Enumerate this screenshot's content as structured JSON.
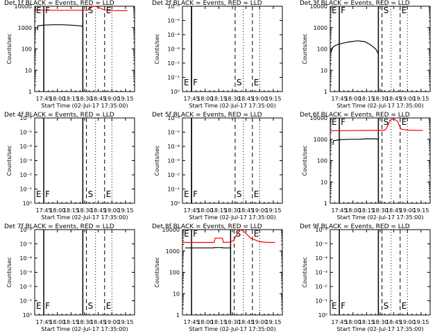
{
  "page": {
    "xlabel": "Start Time (02-Jul-17 17:35:00)",
    "ylabel": "Counts/sec",
    "x_ticks": [
      "17:45",
      "18:00",
      "18:15",
      "18:30",
      "18:45",
      "19:00",
      "19:15"
    ],
    "x_tick_minutes": [
      10,
      25,
      40,
      55,
      70,
      85,
      100
    ],
    "x_range_minutes": [
      0,
      110
    ],
    "marker_labels": [
      "E",
      "F",
      "S",
      "E"
    ],
    "colors": {
      "events": "#000000",
      "lld": "#ff0000",
      "axis": "#000000"
    }
  },
  "chart_data": [
    {
      "type": "line",
      "title": "Det 1f BLACK = Events, RED = LLD",
      "scale": "log",
      "ylim": [
        1,
        10000
      ],
      "y_ticks": [
        "1",
        "10",
        "100",
        "1000",
        "10000"
      ],
      "markers": {
        "E": 0,
        "F": 10,
        "solid": 53,
        "S": 57,
        "dotted1": 67,
        "E2": 77,
        "dotted2": 85
      },
      "series": [
        {
          "name": "LLD",
          "color": "#ff0000",
          "x": [
            0,
            58,
            60,
            63,
            66,
            70,
            74,
            78,
            85,
            95,
            102
          ],
          "y": [
            6500,
            6500,
            7000,
            9500,
            10000,
            9000,
            7500,
            6500,
            6300,
            6200,
            6200
          ]
        },
        {
          "name": "Events",
          "color": "#000000",
          "x": [
            3,
            3.5,
            10,
            20,
            30,
            40,
            50,
            53
          ],
          "y": [
            750,
            1200,
            1300,
            1350,
            1350,
            1300,
            1200,
            1150
          ]
        }
      ]
    },
    {
      "type": "line",
      "title": "Det 2f BLACK = Events, RED = LLD",
      "scale": "tiny",
      "ylim": [
        0.95,
        1.05
      ],
      "y_ticks": [
        "10⁰",
        "10⁻¹",
        "10⁻²",
        "10⁻³",
        "10⁻⁴",
        "10⁻⁵",
        "10⁻⁶"
      ],
      "markers": {
        "E": 0,
        "F": 10,
        "solid": 10,
        "S": 58,
        "dotted1": 67,
        "E2": 77,
        "dotted2": 85
      },
      "series": []
    },
    {
      "type": "line",
      "title": "Det 3f BLACK = Events, RED = LLD",
      "scale": "log",
      "ylim": [
        1,
        10000
      ],
      "y_ticks": [
        "1",
        "10",
        "100",
        "1000",
        "10000"
      ],
      "markers": {
        "E": 0,
        "F": 10,
        "solid": 53,
        "S": 57,
        "dotted1": 67,
        "E2": 77,
        "dotted2": 85
      },
      "series": [
        {
          "name": "Events",
          "color": "#000000",
          "x": [
            1,
            2,
            5,
            10,
            20,
            30,
            38,
            44,
            50,
            53
          ],
          "y": [
            70,
            110,
            140,
            170,
            210,
            240,
            220,
            160,
            100,
            60
          ]
        }
      ]
    },
    {
      "type": "line",
      "title": "Det 4f BLACK = Events, RED = LLD",
      "scale": "tiny",
      "ylim": [
        0.95,
        1.05
      ],
      "y_ticks": [
        "10⁰",
        "10⁻¹",
        "10⁻²",
        "10⁻³",
        "10⁻⁴",
        "10⁻⁵",
        "10⁻⁶"
      ],
      "markers": {
        "E": 0,
        "F": 10,
        "solid": 53,
        "S": 57,
        "dotted1": 67,
        "E2": 77,
        "dotted2": 85
      },
      "series": []
    },
    {
      "type": "line",
      "title": "Det 5f BLACK = Events, RED = LLD",
      "scale": "tiny",
      "ylim": [
        0.95,
        1.05
      ],
      "y_ticks": [
        "10⁰",
        "10⁻¹",
        "10⁻²",
        "10⁻³",
        "10⁻⁴",
        "10⁻⁵",
        "10⁻⁶"
      ],
      "markers": {
        "E": 0,
        "F": 10,
        "solid": 10,
        "S": 58,
        "dotted1": 67,
        "E2": 77,
        "dotted2": 85
      },
      "series": []
    },
    {
      "type": "line",
      "title": "Det 6f BLACK = Events, RED = LLD",
      "scale": "log",
      "ylim": [
        1,
        10000
      ],
      "y_ticks": [
        "1",
        "10",
        "100",
        "1000",
        "10000"
      ],
      "markers": {
        "E": 0,
        "F": 10,
        "solid": 53,
        "S": 57,
        "dotted1": 67,
        "E2": 77,
        "dotted2": 85
      },
      "series": [
        {
          "name": "LLD",
          "color": "#ff0000",
          "x": [
            0,
            40,
            58,
            61,
            64,
            66,
            70,
            74,
            78,
            85,
            95,
            102
          ],
          "y": [
            2500,
            2600,
            2600,
            2800,
            5000,
            8000,
            9000,
            7000,
            3000,
            2700,
            2600,
            2600
          ]
        },
        {
          "name": "Events",
          "color": "#000000",
          "x": [
            3,
            3.5,
            10,
            20,
            30,
            40,
            50,
            53
          ],
          "y": [
            550,
            850,
            950,
            1000,
            1000,
            1050,
            1050,
            1000
          ]
        }
      ]
    },
    {
      "type": "line",
      "title": "Det 7f BLACK = Events, RED = LLD",
      "scale": "tiny",
      "ylim": [
        0.95,
        1.05
      ],
      "y_ticks": [
        "10⁰",
        "10⁻¹",
        "10⁻²",
        "10⁻³",
        "10⁻⁴",
        "10⁻⁵",
        "10⁻⁶"
      ],
      "markers": {
        "E": 0,
        "F": 10,
        "solid": 53,
        "S": 57,
        "dotted1": 67,
        "E2": 77,
        "dotted2": 85
      },
      "series": []
    },
    {
      "type": "line",
      "title": "Det 8f BLACK = Events, RED = LLD",
      "scale": "log",
      "ylim": [
        1,
        10000
      ],
      "y_ticks": [
        "1",
        "10",
        "100",
        "1000",
        "10000"
      ],
      "markers": {
        "E": 0,
        "F": 10,
        "solid": 53,
        "S": 57,
        "dotted1": 67,
        "E2": 77,
        "dotted2": 85
      },
      "series": [
        {
          "name": "LLD",
          "color": "#ff0000",
          "x": [
            0,
            35,
            36,
            44,
            45,
            52,
            56,
            60,
            64,
            68,
            75,
            85,
            95,
            102
          ],
          "y": [
            2500,
            2500,
            4000,
            4000,
            2500,
            2600,
            3000,
            6000,
            10000,
            8000,
            4000,
            2700,
            2500,
            2500
          ]
        },
        {
          "name": "Events",
          "color": "#000000",
          "x": [
            3,
            10,
            20,
            30,
            34.9,
            35,
            44,
            44.1,
            50,
            53
          ],
          "y": [
            1400,
            1400,
            1400,
            1400,
            1400,
            1450,
            1450,
            1400,
            1400,
            1400
          ]
        }
      ]
    },
    {
      "type": "line",
      "title": "Det 9f BLACK = Events, RED = LLD",
      "scale": "tiny",
      "ylim": [
        0.95,
        1.05
      ],
      "y_ticks": [
        "10⁰",
        "10⁻¹",
        "10⁻²",
        "10⁻³",
        "10⁻⁴",
        "10⁻⁵",
        "10⁻⁶"
      ],
      "markers": {
        "E": 0,
        "F": 10,
        "solid": 53,
        "S": 57,
        "dotted1": 67,
        "E2": 77,
        "dotted2": 85
      },
      "series": []
    }
  ]
}
